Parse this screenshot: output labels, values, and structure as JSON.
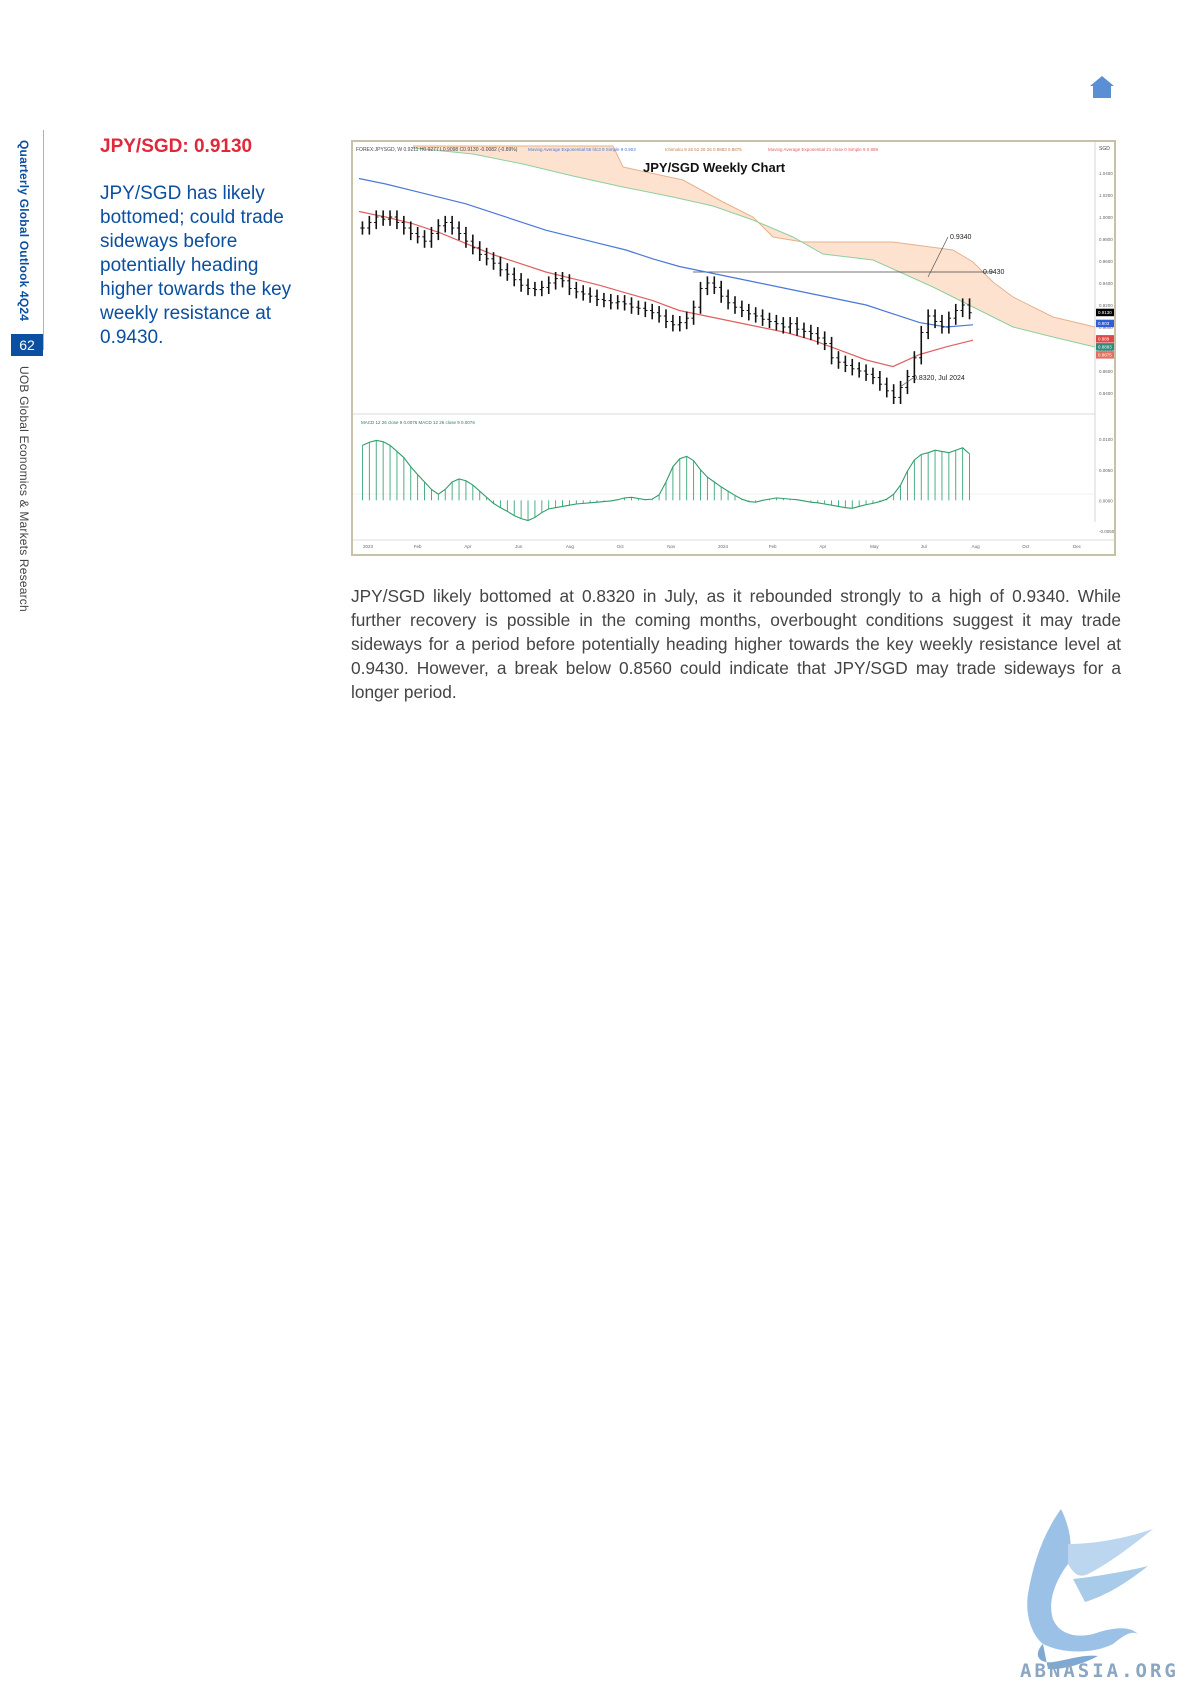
{
  "sidebar": {
    "publication": "Quarterly Global Outlook 4Q24",
    "page_number": "62",
    "publisher": "UOB Global Economics & Markets Research"
  },
  "header": {
    "title": "JPY/SGD: 0.9130"
  },
  "summary": "JPY/SGD has likely bottomed; could trade sideways before potentially heading higher towards the key weekly resistance at 0.9430.",
  "body": "JPY/SGD likely bottomed at 0.8320 in July, as it rebounded strongly to a high of 0.9340. While further recovery is possible in the coming months, overbought conditions suggest it may trade sideways for a period before potentially heading higher towards the key weekly resistance level at 0.9430. However, a break below 0.8560 could indicate that JPY/SGD may trade sideways for a longer period.",
  "chart_data": {
    "type": "line",
    "title": "JPY/SGD Weekly Chart",
    "header_text": "FOREX:JPYSGD, W 0.9211 H0.9277 L0.9098 C0.9130 -0.0082 (-0.89%)",
    "legend": [
      {
        "label": "Moving Average Exponential 55 hlc3 9 Simple 9 0.903",
        "color": "#4a78d8"
      },
      {
        "label": "Ichimoku 9 26 52 26 26 0.8883 0.8875",
        "color": "#e8a070"
      },
      {
        "label": "Moving Average Exponential 21 close 0 Simple 9 0.889",
        "color": "#e06060"
      }
    ],
    "currency": "SGD",
    "x_ticks": [
      "2023",
      "Feb",
      "Apr",
      "Jun",
      "Aug",
      "Oct",
      "Nov",
      "2024",
      "Feb",
      "Apr",
      "May",
      "Jul",
      "Aug",
      "Oct",
      "Dec"
    ],
    "y_ticks": [
      0.84,
      0.86,
      0.88,
      0.9,
      0.92,
      0.94,
      0.96,
      0.98,
      1.0,
      1.02,
      1.04
    ],
    "ylim": [
      0.83,
      1.05
    ],
    "price_tags": [
      {
        "label": "0.9130",
        "value": 0.913,
        "color": "#000000"
      },
      {
        "label": "0.903",
        "value": 0.903,
        "color": "#2f5fd0"
      },
      {
        "label": "0.889",
        "value": 0.889,
        "color": "#e04848"
      },
      {
        "label": "0.8883",
        "value": 0.8883,
        "color": "#2e8a7a"
      },
      {
        "label": "0.8875",
        "value": 0.8875,
        "color": "#e07060"
      }
    ],
    "annotations": [
      {
        "label": "0.9340",
        "value": 0.934
      },
      {
        "label": "0.9430",
        "value": 0.943
      },
      {
        "label": "0.8320, Jul 2024",
        "value": 0.832
      }
    ],
    "resistance": 0.943,
    "price_weekly_close": [
      0.99,
      0.995,
      1.0,
      0.998,
      1.0,
      0.995,
      0.99,
      0.985,
      0.982,
      0.978,
      0.985,
      0.992,
      0.995,
      0.99,
      0.985,
      0.978,
      0.972,
      0.966,
      0.962,
      0.958,
      0.952,
      0.948,
      0.943,
      0.938,
      0.935,
      0.934,
      0.936,
      0.94,
      0.944,
      0.942,
      0.935,
      0.932,
      0.93,
      0.928,
      0.925,
      0.924,
      0.922,
      0.923,
      0.921,
      0.918,
      0.917,
      0.915,
      0.913,
      0.91,
      0.905,
      0.902,
      0.904,
      0.908,
      0.918,
      0.935,
      0.94,
      0.936,
      0.928,
      0.922,
      0.918,
      0.915,
      0.912,
      0.91,
      0.907,
      0.905,
      0.903,
      0.9,
      0.903,
      0.898,
      0.896,
      0.894,
      0.89,
      0.885,
      0.872,
      0.868,
      0.865,
      0.862,
      0.86,
      0.857,
      0.854,
      0.848,
      0.842,
      0.836,
      0.845,
      0.855,
      0.872,
      0.895,
      0.91,
      0.905,
      0.9,
      0.908,
      0.915,
      0.92,
      0.913
    ],
    "ema55": [
      1.035,
      1.03,
      1.024,
      1.018,
      1.012,
      1.004,
      0.996,
      0.988,
      0.982,
      0.976,
      0.97,
      0.962,
      0.955,
      0.95,
      0.945,
      0.94,
      0.935,
      0.93,
      0.925,
      0.92,
      0.912,
      0.904,
      0.9,
      0.902
    ],
    "ema21": [
      1.005,
      1.0,
      0.994,
      0.986,
      0.976,
      0.966,
      0.958,
      0.95,
      0.944,
      0.938,
      0.931,
      0.924,
      0.915,
      0.91,
      0.905,
      0.9,
      0.895,
      0.888,
      0.879,
      0.87,
      0.864,
      0.875,
      0.882,
      0.888
    ],
    "macd_label": "MACD 12 26 close 9 0.0076 MACD 12 26 close 9 0.0076",
    "macd_ticks": [
      -0.005,
      0.0,
      0.005,
      0.01
    ],
    "macd_values": [
      0.009,
      0.0095,
      0.0098,
      0.0096,
      0.009,
      0.008,
      0.007,
      0.0055,
      0.0042,
      0.003,
      0.0018,
      0.001,
      0.0018,
      0.003,
      0.0035,
      0.0032,
      0.0025,
      0.0015,
      0.0005,
      -0.0005,
      -0.0012,
      -0.0018,
      -0.0025,
      -0.003,
      -0.0033,
      -0.0028,
      -0.002,
      -0.0014,
      -0.0012,
      -0.001,
      -0.0008,
      -0.0006,
      -0.0005,
      -0.0004,
      -0.0003,
      -0.0002,
      -0.0001,
      0.0001,
      0.0004,
      0.0005,
      0.0003,
      0.0001,
      0.0002,
      0.0009,
      0.003,
      0.0055,
      0.0068,
      0.0072,
      0.0065,
      0.005,
      0.0038,
      0.003,
      0.0022,
      0.0015,
      0.0008,
      0.0002,
      -0.0002,
      -0.0003,
      0.0,
      0.0002,
      0.0004,
      0.0003,
      0.0002,
      0.0001,
      -0.0001,
      -0.0003,
      -0.0004,
      -0.0006,
      -0.0008,
      -0.001,
      -0.0012,
      -0.0013,
      -0.001,
      -0.0007,
      -0.0005,
      -0.0002,
      0.0002,
      0.001,
      0.0025,
      0.0048,
      0.0066,
      0.0075,
      0.0078,
      0.0082,
      0.008,
      0.0078,
      0.0082,
      0.0086,
      0.0076
    ]
  },
  "watermark": {
    "text": "ABNASIA.ORG"
  }
}
